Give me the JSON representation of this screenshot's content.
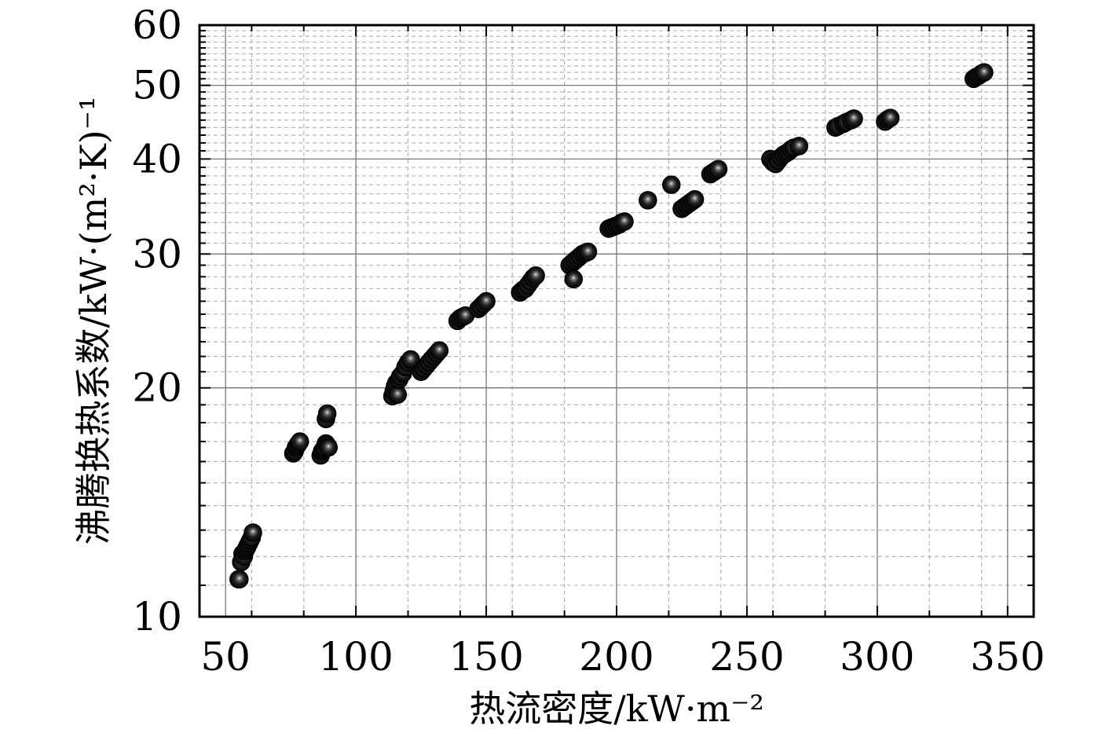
{
  "chart_data": {
    "type": "scatter",
    "title": "",
    "xlabel": "热流密度/kW·m⁻²",
    "ylabel": "沸腾换热系数/kW·(m²·K)⁻¹",
    "x_scale": "linear",
    "y_scale": "log",
    "xlim": [
      40,
      360
    ],
    "ylim": [
      10,
      60
    ],
    "x_ticks": [
      50,
      100,
      150,
      200,
      250,
      300,
      350
    ],
    "x_tick_labels": [
      "50",
      "100",
      "150",
      "200",
      "250",
      "300",
      "350"
    ],
    "y_ticks": [
      10,
      20,
      30,
      40,
      50,
      60
    ],
    "y_tick_labels": [
      "10",
      "20",
      "30",
      "40",
      "50",
      "60"
    ],
    "grid": true,
    "legend": "none",
    "marker_color": "#111111",
    "series": [
      {
        "x": [
          55,
          55.3,
          56,
          56.5,
          57,
          57.5,
          58,
          58.5,
          59,
          59.5,
          60,
          60.5,
          76,
          76.5,
          77,
          77.5,
          78,
          78.5,
          86.5,
          87,
          87.5,
          88,
          88.5,
          89,
          89.5,
          88.5,
          89,
          114,
          114.5,
          115,
          115.5,
          116,
          116.5,
          117,
          118,
          119,
          120,
          121,
          125,
          126,
          127,
          128,
          129,
          130,
          131,
          132,
          139,
          140,
          141,
          142,
          147,
          148,
          149,
          150,
          163,
          164,
          165,
          166,
          167,
          168,
          169,
          182,
          183,
          183.5,
          184,
          185,
          186,
          187,
          188,
          189,
          197,
          198,
          199,
          200,
          201,
          202,
          203,
          212,
          221,
          225,
          226,
          227,
          228,
          229,
          230,
          236,
          237,
          238,
          239,
          259,
          260,
          261,
          262,
          263,
          264,
          265,
          266,
          267,
          268,
          270,
          284,
          285,
          287,
          288,
          290,
          291,
          303,
          304,
          305,
          337,
          338,
          339,
          340,
          341
        ],
        "y": [
          11.2,
          11.2,
          11.8,
          12.1,
          12.0,
          12.2,
          12.3,
          12.4,
          12.5,
          12.6,
          12.7,
          12.9,
          16.4,
          16.5,
          16.7,
          16.8,
          16.9,
          17.0,
          16.3,
          16.5,
          16.6,
          16.7,
          16.9,
          16.8,
          16.7,
          18.2,
          18.5,
          19.5,
          19.8,
          20.1,
          20.3,
          19.6,
          20.5,
          20.7,
          20.9,
          21.3,
          21.6,
          21.8,
          21.0,
          21.2,
          21.4,
          21.6,
          21.8,
          22.0,
          22.2,
          22.4,
          24.5,
          24.7,
          24.8,
          24.9,
          25.4,
          25.6,
          25.8,
          26.0,
          26.7,
          26.9,
          27.0,
          27.3,
          27.6,
          27.9,
          28.1,
          29.0,
          29.2,
          27.8,
          29.4,
          29.6,
          29.8,
          30.0,
          30.1,
          30.2,
          32.4,
          32.5,
          32.6,
          32.7,
          32.8,
          33.0,
          33.1,
          35.3,
          37.0,
          34.4,
          34.6,
          34.8,
          35.0,
          35.2,
          35.4,
          38.2,
          38.4,
          38.6,
          38.8,
          40.0,
          39.6,
          39.4,
          39.8,
          40.2,
          40.5,
          40.7,
          40.9,
          41.2,
          41.4,
          41.6,
          44.0,
          44.2,
          44.5,
          44.7,
          45.0,
          45.2,
          44.8,
          45.1,
          45.3,
          51.0,
          51.3,
          51.5,
          51.8,
          52.0
        ]
      }
    ]
  }
}
